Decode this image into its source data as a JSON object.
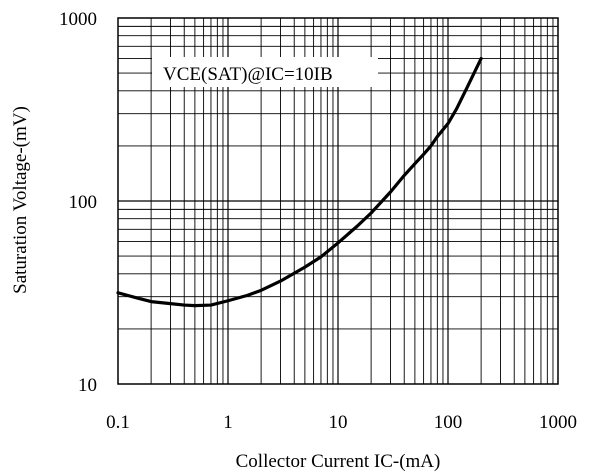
{
  "chart_data": {
    "type": "line",
    "title": "",
    "xlabel": "Collector Current IC-(mA)",
    "ylabel": "Saturation Voltage-(mV)",
    "xscale": "log",
    "yscale": "log",
    "xlim": [
      0.1,
      1000
    ],
    "ylim": [
      10,
      1000
    ],
    "grid": true,
    "x_ticks": [
      "0.1",
      "1",
      "10",
      "100",
      "1000"
    ],
    "y_ticks": [
      "10",
      "100",
      "1000"
    ],
    "annotation": "VCE(SAT)@IC=10IB",
    "series": [
      {
        "name": "",
        "color": "#000000",
        "x": [
          0.1,
          0.15,
          0.2,
          0.3,
          0.4,
          0.5,
          0.7,
          1,
          1.5,
          2,
          3,
          5,
          7,
          10,
          15,
          20,
          30,
          40,
          50,
          60,
          70,
          80,
          100,
          120,
          150,
          200
        ],
        "y": [
          31.5,
          29.5,
          28.2,
          27.5,
          27.0,
          26.8,
          27.0,
          28.5,
          30.5,
          32.5,
          36.5,
          43.5,
          49.5,
          59,
          73,
          86,
          112,
          138,
          160,
          180,
          200,
          225,
          265,
          320,
          420,
          600
        ]
      }
    ]
  }
}
